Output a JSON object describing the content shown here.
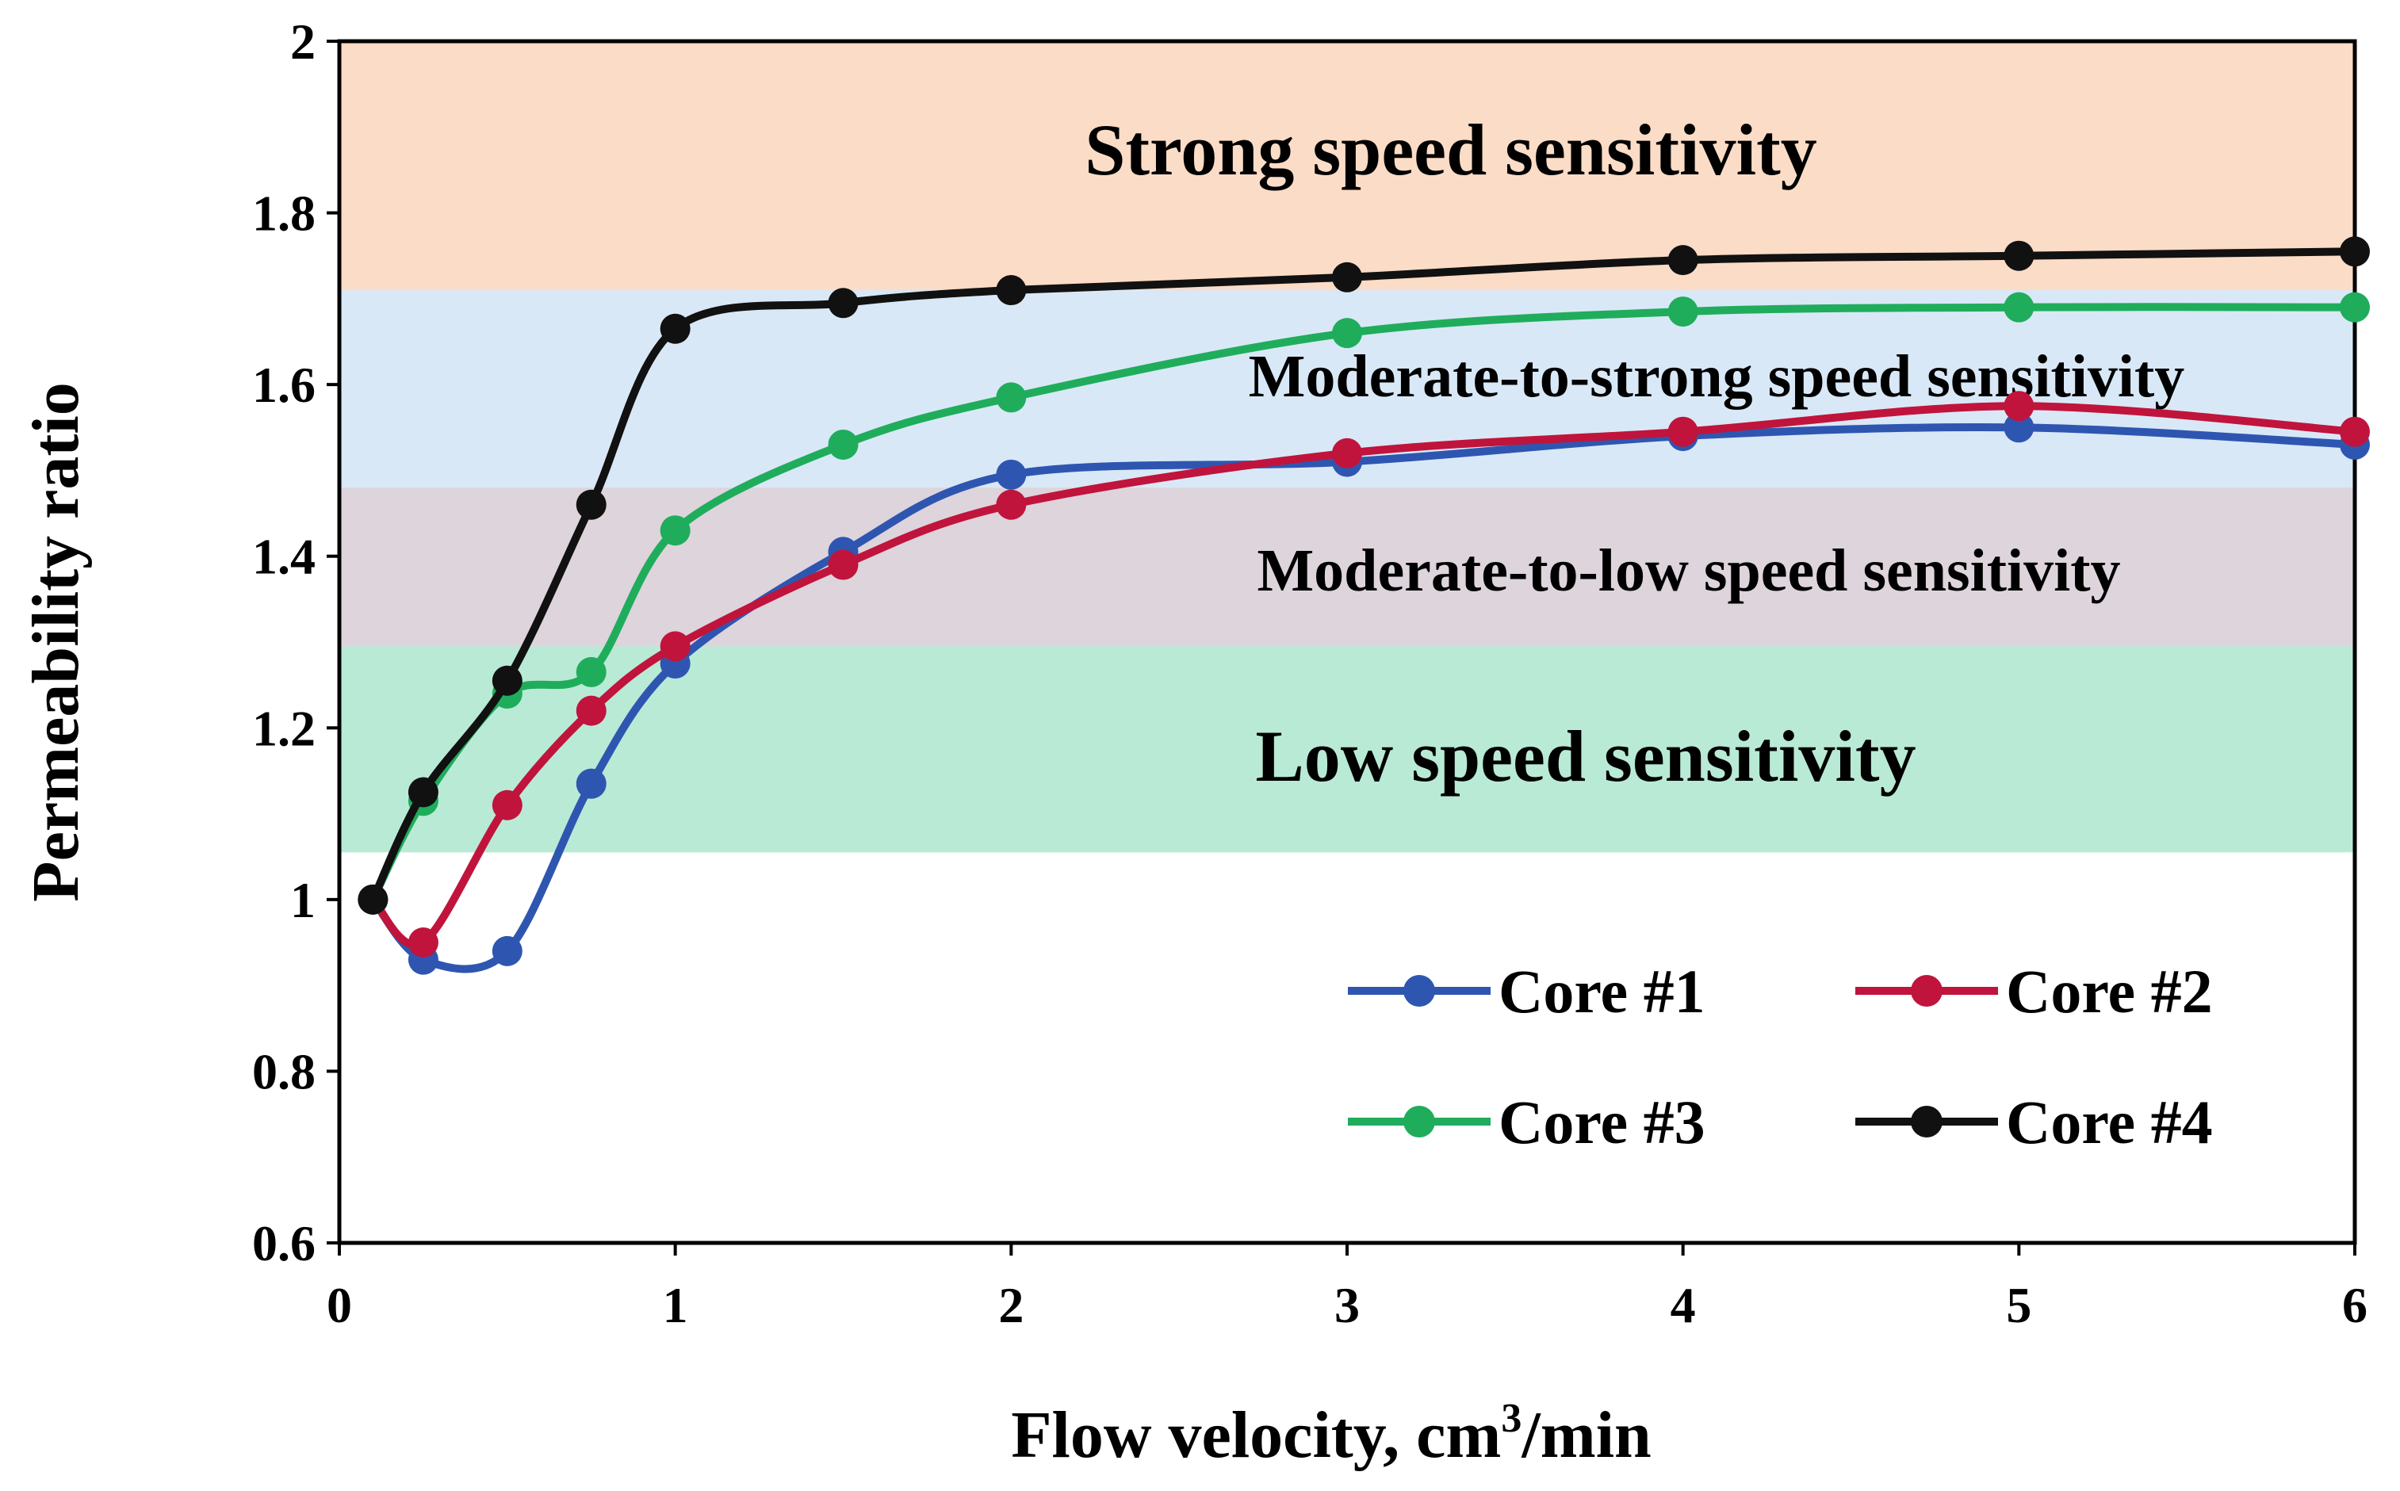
{
  "chart_data": {
    "type": "line",
    "xlabel": "Flow velocity,  cm",
    "xlabel_superscript": "3",
    "xlabel_suffix": "/min",
    "ylabel": "Permeability  ratio",
    "xlim": [
      0,
      6
    ],
    "ylim": [
      0.6,
      2.0
    ],
    "xticks": [
      "0",
      "1",
      "2",
      "3",
      "4",
      "5",
      "6"
    ],
    "yticks": [
      "0.6",
      "0.8",
      "1",
      "1.2",
      "1.4",
      "1.6",
      "1.8",
      "2"
    ],
    "grid": false,
    "legend_position": "bottom-right",
    "zones": [
      {
        "label": "Strong speed sensitivity",
        "ymin": 1.71,
        "ymax": 2.0,
        "color": "#fbdcc6"
      },
      {
        "label": "Moderate-to-strong speed sensitivity",
        "ymin": 1.48,
        "ymax": 1.71,
        "color": "#d9e8f6"
      },
      {
        "label": "Moderate-to-low speed sensitivity",
        "ymin": 1.295,
        "ymax": 1.48,
        "color": "#ddd4dc"
      },
      {
        "label": "Low speed sensitivity",
        "ymin": 1.055,
        "ymax": 1.295,
        "color": "#b9ead6"
      }
    ],
    "series": [
      {
        "name": "Core #1",
        "color": "#2e56b1",
        "x": [
          0.1,
          0.25,
          0.5,
          0.75,
          1,
          1.5,
          2,
          3,
          4,
          5,
          6
        ],
        "values": [
          1.0,
          0.93,
          0.94,
          1.135,
          1.275,
          1.405,
          1.495,
          1.51,
          1.54,
          1.55,
          1.53
        ]
      },
      {
        "name": "Core #2",
        "color": "#c0143c",
        "x": [
          0.1,
          0.25,
          0.5,
          0.75,
          1,
          1.5,
          2,
          3,
          4,
          5,
          6
        ],
        "values": [
          1.0,
          0.95,
          1.11,
          1.22,
          1.295,
          1.39,
          1.46,
          1.52,
          1.545,
          1.575,
          1.545
        ]
      },
      {
        "name": "Core #3",
        "color": "#1fad5c",
        "x": [
          0.1,
          0.25,
          0.5,
          0.75,
          1,
          1.5,
          2,
          3,
          4,
          5,
          6
        ],
        "values": [
          1.0,
          1.115,
          1.24,
          1.265,
          1.43,
          1.53,
          1.585,
          1.66,
          1.685,
          1.69,
          1.69
        ]
      },
      {
        "name": "Core #4",
        "color": "#111111",
        "x": [
          0.1,
          0.25,
          0.5,
          0.75,
          1,
          1.5,
          2,
          3,
          4,
          5,
          6
        ],
        "values": [
          1.0,
          1.125,
          1.255,
          1.46,
          1.665,
          1.695,
          1.71,
          1.725,
          1.745,
          1.75,
          1.755
        ]
      }
    ]
  }
}
